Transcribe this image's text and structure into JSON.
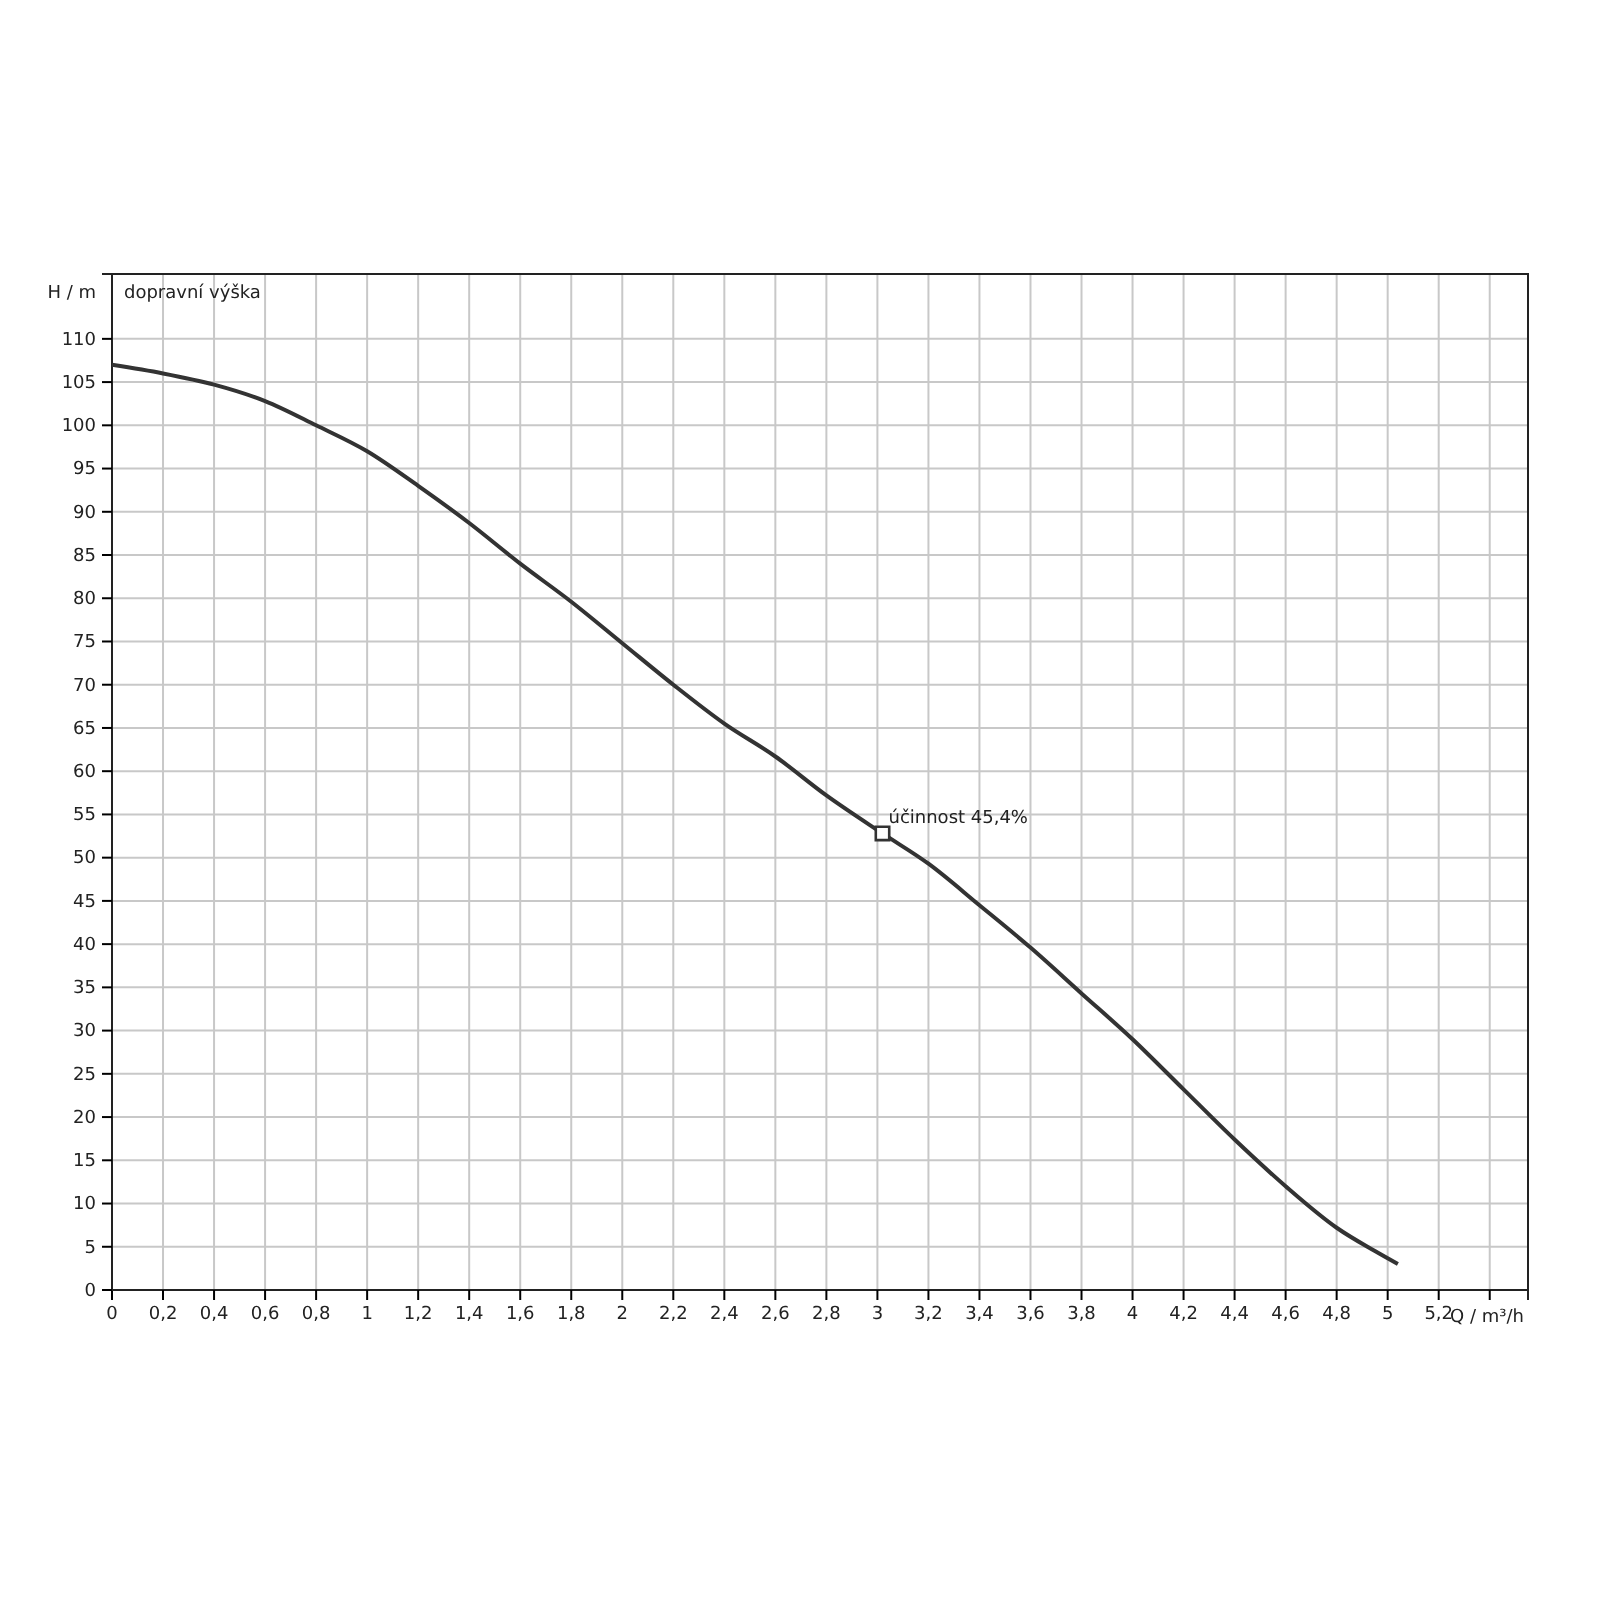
{
  "chart_data": {
    "type": "line",
    "xlabel": "Q / m³/h",
    "ylabel": "H / m",
    "annotations": [
      "dopravní výška",
      {
        "text": "účinnost  45,4%",
        "x": 3.02,
        "y": 52.8
      }
    ],
    "series": [
      {
        "color": "#333333",
        "x": [
          0,
          0.2,
          0.4,
          0.6,
          0.8,
          1.0,
          1.2,
          1.4,
          1.6,
          1.8,
          2.0,
          2.2,
          2.4,
          2.6,
          2.8,
          3.02,
          3.2,
          3.4,
          3.6,
          3.8,
          4.0,
          4.2,
          4.4,
          4.6,
          4.8,
          4.95,
          5.04
        ],
        "values": [
          107,
          106,
          104.7,
          102.8,
          100,
          97,
          93,
          88.7,
          84,
          79.6,
          74.8,
          70,
          65.5,
          61.7,
          57.2,
          52.8,
          49.3,
          44.5,
          39.6,
          34.3,
          29,
          23.2,
          17.4,
          12,
          7.2,
          4.5,
          3
        ]
      },
      {
        "type": "scatter",
        "color": "#333333",
        "marker": "square",
        "x": [
          3.02
        ],
        "values": [
          52.8
        ]
      }
    ],
    "xlim": [
      0,
      5.55
    ],
    "ylim": [
      0,
      117.5
    ],
    "xticks": [
      0,
      {
        "value": 0.2,
        "label": "0,2"
      },
      {
        "value": 0.4,
        "label": "0,4"
      },
      {
        "value": 0.6,
        "label": "0,6"
      },
      {
        "value": 0.8,
        "label": "0,8"
      },
      1,
      {
        "value": 1.2,
        "label": "1,2"
      },
      {
        "value": 1.4,
        "label": "1,4"
      },
      {
        "value": 1.6,
        "label": "1,6"
      },
      {
        "value": 1.8,
        "label": "1,8"
      },
      2,
      {
        "value": 2.2,
        "label": "2,2"
      },
      {
        "value": 2.4,
        "label": "2,4"
      },
      {
        "value": 2.6,
        "label": "2,6"
      },
      {
        "value": 2.8,
        "label": "2,8"
      },
      3,
      {
        "value": 3.2,
        "label": "3,2"
      },
      {
        "value": 3.4,
        "label": "3,4"
      },
      {
        "value": 3.6,
        "label": "3,6"
      },
      {
        "value": 3.8,
        "label": "3,8"
      },
      4,
      {
        "value": 4.2,
        "label": "4,2"
      },
      {
        "value": 4.4,
        "label": "4,4"
      },
      {
        "value": 4.6,
        "label": "4,6"
      },
      {
        "value": 4.8,
        "label": "4,8"
      },
      5,
      {
        "value": 5.2,
        "label": "5,2"
      },
      {
        "value": 5.4,
        "label": null
      }
    ],
    "yticks": [
      0,
      5,
      10,
      15,
      20,
      25,
      30,
      35,
      40,
      45,
      50,
      55,
      60,
      65,
      70,
      75,
      80,
      85,
      90,
      95,
      100,
      105,
      110
    ],
    "grid": true,
    "line_style": "solid"
  }
}
